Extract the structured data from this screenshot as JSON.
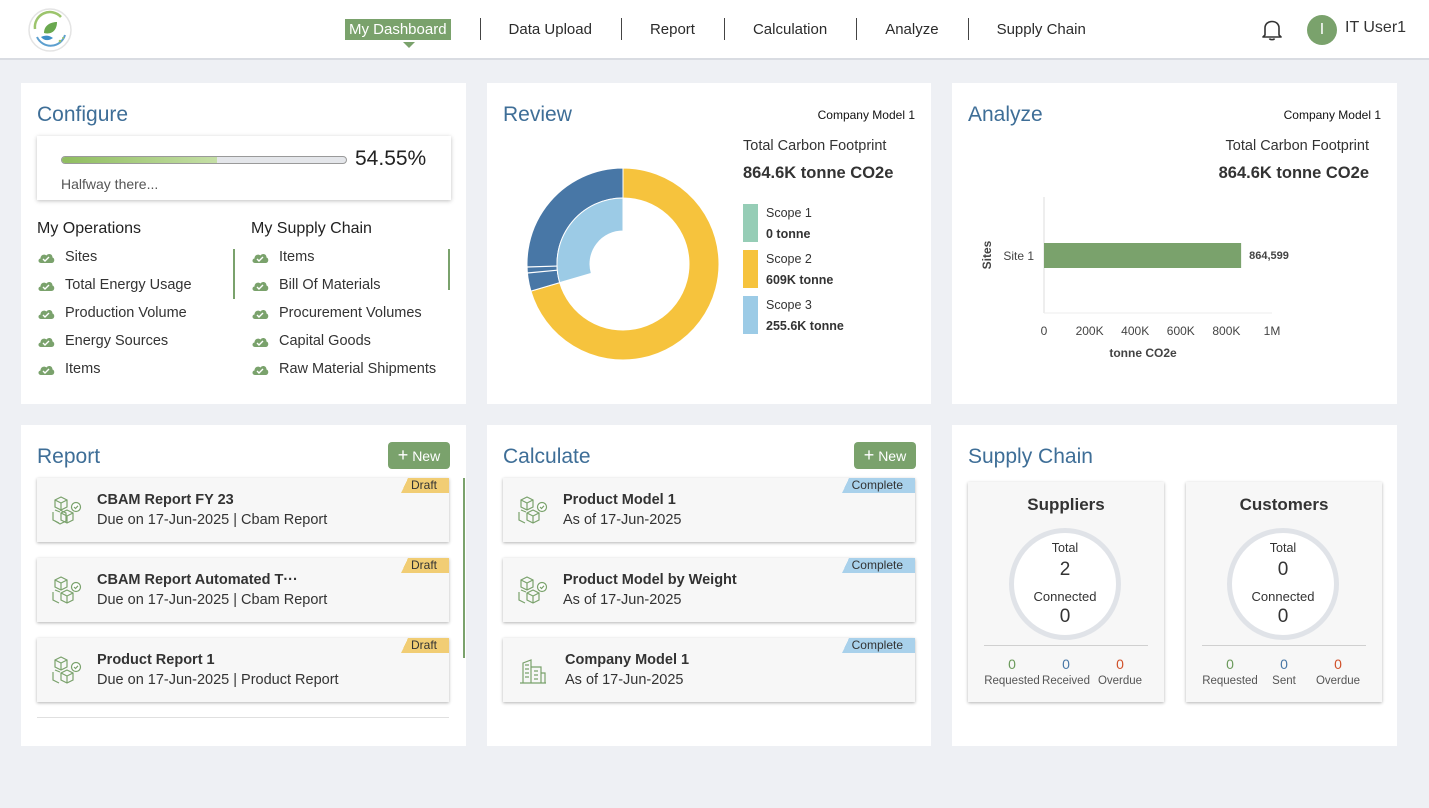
{
  "nav": {
    "items": [
      {
        "label": "My Dashboard",
        "active": true
      },
      {
        "label": "Data Upload"
      },
      {
        "label": "Report"
      },
      {
        "label": "Calculation"
      },
      {
        "label": "Analyze"
      },
      {
        "label": "Supply Chain"
      }
    ],
    "user_initial": "I",
    "user_name": "IT User1",
    "icons": {
      "logo": "leaf-logo-icon",
      "notifications": "bell-icon"
    }
  },
  "colors": {
    "accent_green": "#7aa26c",
    "title_blue": "#3e6e97",
    "scope1": "#96cdb6",
    "scope2": "#f6c33d",
    "scope3": "#9ccbe6",
    "scope_dark": "#4877a6",
    "draft": "#f1cd74",
    "complete": "#a9d1eb",
    "requested": "#6b9a5b",
    "received": "#4877a6",
    "overdue": "#d0512a"
  },
  "configure": {
    "title": "Configure",
    "progress": 0.5455,
    "progress_label": "54.55%",
    "progress_note": "Halfway there...",
    "operations_title": "My Operations",
    "operations": [
      "Sites",
      "Total Energy Usage",
      "Production Volume",
      "Energy Sources",
      "Items"
    ],
    "supply_chain_title": "My Supply Chain",
    "supply_chain": [
      "Items",
      "Bill Of Materials",
      "Procurement Volumes",
      "Capital Goods",
      "Raw Material Shipments"
    ]
  },
  "review": {
    "title": "Review",
    "model": "Company Model 1",
    "footprint_label": "Total Carbon Footprint",
    "footprint_value": "864.6K tonne CO2e",
    "legend": [
      {
        "name": "Scope 1",
        "value": "0 tonne"
      },
      {
        "name": "Scope 2",
        "value": "609K tonne"
      },
      {
        "name": "Scope 3",
        "value": "255.6K tonne"
      }
    ]
  },
  "analyze": {
    "title": "Analyze",
    "model": "Company Model 1",
    "footprint_label": "Total Carbon Footprint",
    "footprint_value": "864.6K tonne CO2e"
  },
  "chart_data": [
    {
      "type": "pie",
      "variant": "nested-donut",
      "outer_ring": {
        "categories": [
          "Scope 1",
          "Scope 2",
          "Scope 3"
        ],
        "values": [
          0,
          609000,
          255600
        ]
      },
      "inner_ring": {
        "note": "Scope 3 breakdown (light blue), unlabeled"
      }
    },
    {
      "type": "bar",
      "orientation": "horizontal",
      "categories": [
        "Site 1"
      ],
      "values": [
        864599
      ],
      "data_labels": [
        "864,599"
      ],
      "ylabel": "Sites",
      "xlabel": "tonne CO2e",
      "xticks": [
        "0",
        "200K",
        "400K",
        "600K",
        "800K",
        "1M"
      ],
      "xlim": [
        0,
        1000000
      ],
      "grid": false
    }
  ],
  "report": {
    "title": "Report",
    "new_label": "New",
    "items": [
      {
        "title": "CBAM Report FY 23",
        "sub": "Due on 17-Jun-2025 | Cbam Report",
        "status": "Draft"
      },
      {
        "title": "CBAM Report Automated T···",
        "sub": "Due on 17-Jun-2025 | Cbam Report",
        "status": "Draft"
      },
      {
        "title": "Product Report 1",
        "sub": "Due on 17-Jun-2025 | Product Report",
        "status": "Draft"
      }
    ]
  },
  "calculate": {
    "title": "Calculate",
    "new_label": "New",
    "items": [
      {
        "title": "Product Model 1",
        "sub": "As of 17-Jun-2025",
        "status": "Complete",
        "icon": "cubes-icon"
      },
      {
        "title": "Product Model by Weight",
        "sub": "As of 17-Jun-2025",
        "status": "Complete",
        "icon": "cubes-icon"
      },
      {
        "title": "Company Model 1",
        "sub": "As of 17-Jun-2025",
        "status": "Complete",
        "icon": "building-icon"
      }
    ]
  },
  "supply_chain": {
    "title": "Supply Chain",
    "suppliers": {
      "title": "Suppliers",
      "total_label": "Total",
      "total": "2",
      "connected_label": "Connected",
      "connected": "0",
      "stats": [
        {
          "value": "0",
          "label": "Requested"
        },
        {
          "value": "0",
          "label": "Received"
        },
        {
          "value": "0",
          "label": "Overdue"
        }
      ]
    },
    "customers": {
      "title": "Customers",
      "total_label": "Total",
      "total": "0",
      "connected_label": "Connected",
      "connected": "0",
      "stats": [
        {
          "value": "0",
          "label": "Requested"
        },
        {
          "value": "0",
          "label": "Sent"
        },
        {
          "value": "0",
          "label": "Overdue"
        }
      ]
    }
  }
}
